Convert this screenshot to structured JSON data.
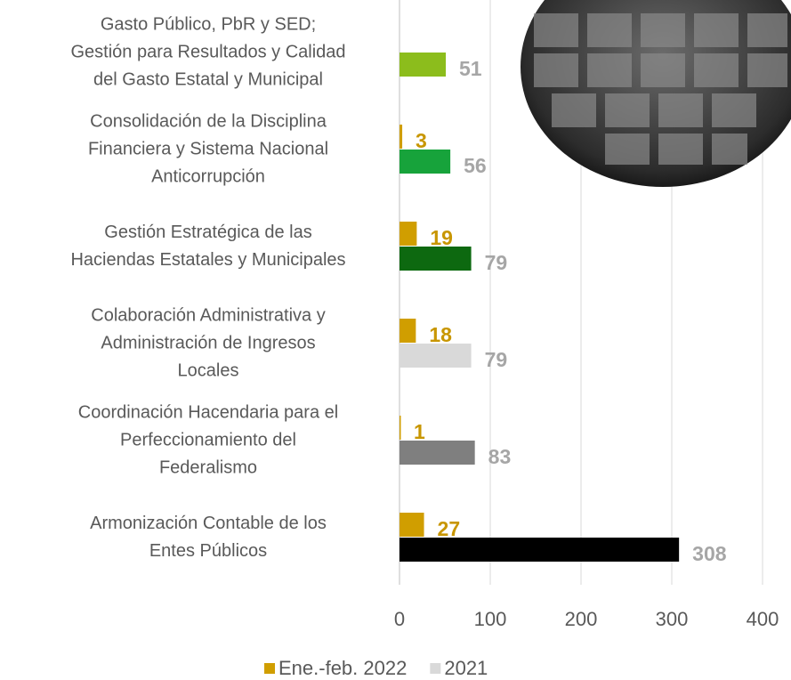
{
  "chart_data": {
    "type": "bar",
    "orientation": "horizontal",
    "categories": [
      [
        "Gasto Público, PbR y SED;",
        "Gestión para Resultados y Calidad",
        "del Gasto Estatal y Municipal"
      ],
      [
        "Consolidación de la Disciplina",
        "Financiera  y Sistema Nacional",
        "Anticorrupción"
      ],
      [
        "Gestión Estratégica de las",
        "Haciendas Estatales y Municipales"
      ],
      [
        "Colaboración Administrativa y",
        "Administración de Ingresos",
        "Locales"
      ],
      [
        "Coordinación Hacendaria para el",
        "Perfeccionamiento del",
        "Federalismo"
      ],
      [
        "Armonización Contable de los",
        "Entes Públicos"
      ]
    ],
    "series": [
      {
        "name": "Ene.-feb. 2022",
        "color": "#d09e00",
        "label_color": "#c89600",
        "values": [
          null,
          3,
          19,
          18,
          1,
          27
        ]
      },
      {
        "name": "2021",
        "color": "#d9d9d9",
        "label_color": "#a6a6a6",
        "colors": [
          "#8cbd1c",
          "#17a33b",
          "#0d6910",
          "#d9d9d9",
          "#7f7f7f",
          "#000000"
        ],
        "values": [
          51,
          56,
          79,
          79,
          83,
          308
        ]
      }
    ],
    "xlim": [
      0,
      400
    ],
    "xticks": [
      0,
      100,
      200,
      300,
      400
    ],
    "grid": true
  }
}
